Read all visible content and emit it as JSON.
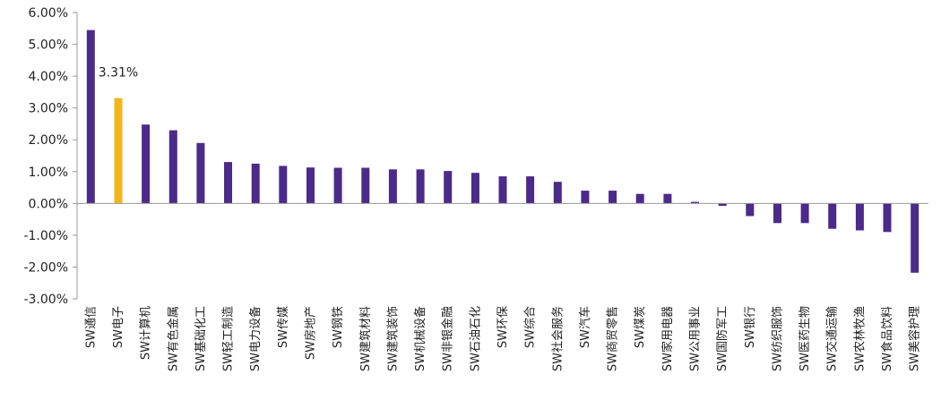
{
  "chart_data": {
    "type": "bar",
    "title": "",
    "xlabel": "",
    "ylabel": "",
    "ylim": [
      -3,
      6
    ],
    "yticks": [
      6,
      5,
      4,
      3,
      2,
      1,
      0,
      -1,
      -2,
      -3
    ],
    "ytick_labels": [
      "6.00%",
      "5.00%",
      "4.00%",
      "3.00%",
      "2.00%",
      "1.00%",
      "0.00%",
      "-1.00%",
      "-2.00%",
      "-3.00%"
    ],
    "categories": [
      "SW通信",
      "SW电子",
      "SW计算机",
      "SW有色金属",
      "SW基础化工",
      "SW轻工制造",
      "SW电力设备",
      "SW传媒",
      "SW房地产",
      "SW钢铁",
      "SW建筑材料",
      "SW建筑装饰",
      "SW机械设备",
      "SW非银金融",
      "SW石油石化",
      "SW环保",
      "SW综合",
      "SW社会服务",
      "SW汽车",
      "SW商贸零售",
      "SW煤炭",
      "SW家用电器",
      "SW公用事业",
      "SW国防军工",
      "SW银行",
      "SW纺织服饰",
      "SW医药生物",
      "SW交通运输",
      "SW农林牧渔",
      "SW食品饮料",
      "SW美容护理"
    ],
    "values": [
      5.45,
      3.31,
      2.48,
      2.3,
      1.9,
      1.3,
      1.25,
      1.18,
      1.13,
      1.12,
      1.12,
      1.07,
      1.07,
      1.02,
      0.96,
      0.85,
      0.85,
      0.68,
      0.4,
      0.4,
      0.3,
      0.3,
      0.05,
      -0.08,
      -0.4,
      -0.62,
      -0.62,
      -0.8,
      -0.85,
      -0.9,
      -2.18
    ],
    "highlight_index": 1,
    "data_labels": [
      {
        "index": 1,
        "text": "3.31%"
      }
    ],
    "colors": {
      "bar": "#4b2a8a",
      "highlight": "#f2b61c",
      "axis": "#999999"
    },
    "grid": false,
    "legend": "none"
  }
}
